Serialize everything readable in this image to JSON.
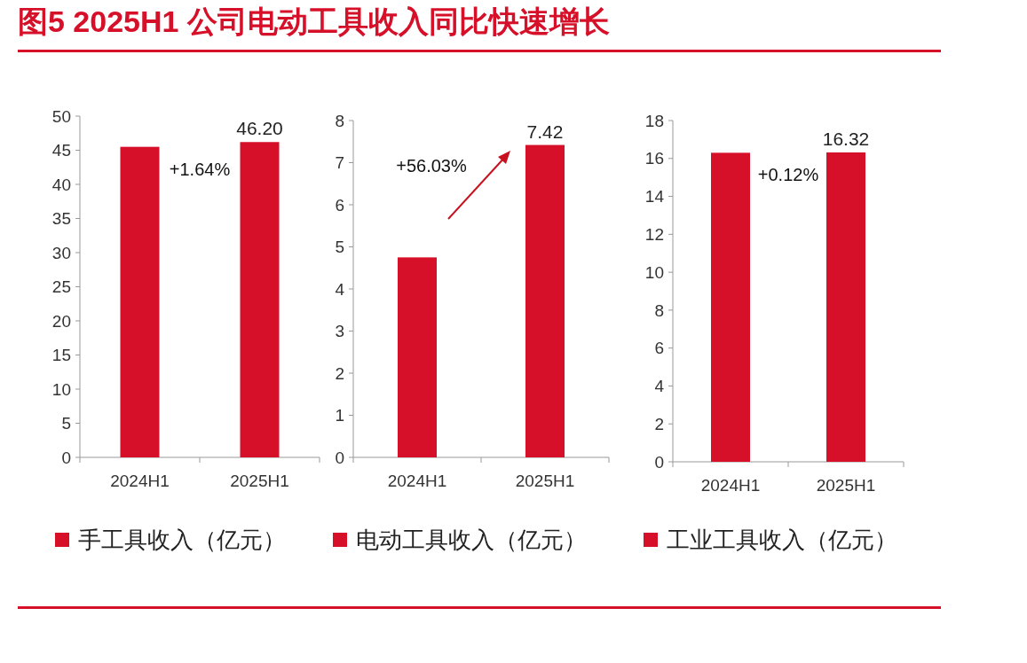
{
  "chart_data": [
    {
      "type": "bar",
      "title": "图5  2025H1 公司电动工具收入同比快速增长",
      "categories": [
        "2024H1",
        "2025H1"
      ],
      "series": [
        {
          "name": "手工具收入（亿元）",
          "color": "#d7102a",
          "values": [
            45.5,
            46.2
          ],
          "value_labels": [
            null,
            "46.20"
          ]
        }
      ],
      "ylim": [
        0,
        50
      ],
      "yticks": [
        0,
        5,
        10,
        15,
        20,
        25,
        30,
        35,
        40,
        45,
        50
      ],
      "annotations": [
        "+1.64%"
      ],
      "legend": "bottom",
      "grid": false
    },
    {
      "type": "bar",
      "categories": [
        "2024H1",
        "2025H1"
      ],
      "series": [
        {
          "name": "电动工具收入（亿元）",
          "color": "#d7102a",
          "values": [
            4.75,
            7.42
          ],
          "value_labels": [
            null,
            "7.42"
          ]
        }
      ],
      "ylim": [
        0,
        8
      ],
      "yticks": [
        0,
        1,
        2,
        3,
        4,
        5,
        6,
        7,
        8
      ],
      "annotations": [
        "+56.03%"
      ],
      "legend": "bottom",
      "grid": false
    },
    {
      "type": "bar",
      "categories": [
        "2024H1",
        "2025H1"
      ],
      "series": [
        {
          "name": "工业工具收入（亿元）",
          "color": "#d7102a",
          "values": [
            16.3,
            16.32
          ],
          "value_labels": [
            null,
            "16.32"
          ]
        }
      ],
      "ylim": [
        0,
        18
      ],
      "yticks": [
        0,
        2,
        4,
        6,
        8,
        10,
        12,
        14,
        16,
        18
      ],
      "annotations": [
        "+0.12%"
      ],
      "legend": "bottom",
      "grid": false
    }
  ]
}
